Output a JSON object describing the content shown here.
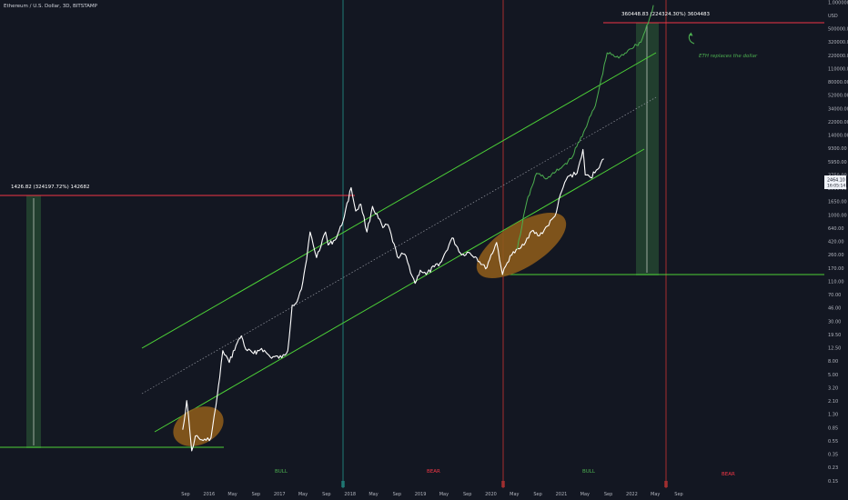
{
  "header": {
    "title": "Ethereum / U.S. Dollar, 3D, BITSTAMP",
    "axis_unit": "USD"
  },
  "colors": {
    "background": "#131722",
    "price": "#ffffff",
    "projection": "#4caf50",
    "channel": "#4cd137",
    "resistance": "#f23645",
    "ellipse": "#8b5a1b",
    "bull": "#4caf50",
    "bear": "#f23645",
    "vline_teal": "#26a69a",
    "vline_red": "#e53935",
    "range_fill": "#2e5e38"
  },
  "y_ticks": [
    "1.0000000000E+06",
    "USD",
    "500000.00",
    "320000.00",
    "220000.00",
    "110000.00",
    "80000.00",
    "52000.00",
    "34000.00",
    "22000.00",
    "14000.00",
    "9300.00",
    "5950.00",
    "3750.00",
    "2500.00",
    "1650.00",
    "1000.00",
    "640.00",
    "420.00",
    "260.00",
    "170.00",
    "110.00",
    "70.00",
    "46.00",
    "30.00",
    "19.50",
    "12.50",
    "8.00",
    "5.00",
    "3.20",
    "2.10",
    "1.30",
    "0.85",
    "0.55",
    "0.35",
    "0.23",
    "0.15"
  ],
  "x_ticks": [
    "Sep",
    "2016",
    "May",
    "Sep",
    "2017",
    "May",
    "Sep",
    "2018",
    "May",
    "Sep",
    "2019",
    "May",
    "Sep",
    "2020",
    "May",
    "Sep",
    "2021",
    "May",
    "Sep",
    "2022",
    "May",
    "Sep"
  ],
  "price_labels": {
    "current": "2464.10",
    "countdown": "16:05:14"
  },
  "annotations": {
    "left_range": "1426.82 (324197.72%) 142682",
    "right_range": "360448.83 (224324.30%) 3604483",
    "eth_note": "ETH replaces the dollar",
    "bull_1": "BULL",
    "bear_1": "BEAR",
    "bull_2": "BULL",
    "bear_2": "BEAR"
  },
  "chart_data": {
    "type": "line",
    "title": "Ethereum / U.S. Dollar, 3D, BITSTAMP",
    "xlabel": "",
    "ylabel": "USD",
    "y_scale": "log",
    "ylim": [
      0.15,
      1000000
    ],
    "xlim": [
      "2015-08-01",
      "2022-10-15"
    ],
    "grid": false,
    "series": [
      {
        "role": "price",
        "x": [
          "2015-08-15",
          "2015-09-05",
          "2015-10-01",
          "2015-10-20",
          "2015-11-15",
          "2015-12-15",
          "2016-01-10",
          "2016-02-05",
          "2016-02-25",
          "2016-03-12",
          "2016-04-15",
          "2016-05-20",
          "2016-06-17",
          "2016-07-10",
          "2016-08-20",
          "2016-10-01",
          "2016-11-15",
          "2017-01-15",
          "2017-02-15",
          "2017-03-10",
          "2017-04-05",
          "2017-05-05",
          "2017-05-25",
          "2017-06-12",
          "2017-07-16",
          "2017-08-15",
          "2017-09-01",
          "2017-09-15",
          "2017-10-20",
          "2017-11-25",
          "2017-12-15",
          "2018-01-13",
          "2018-02-06",
          "2018-03-05",
          "2018-04-06",
          "2018-05-05",
          "2018-06-28",
          "2018-07-25",
          "2018-09-12",
          "2018-10-20",
          "2018-12-14",
          "2019-01-10",
          "2019-02-10",
          "2019-03-25",
          "2019-05-01",
          "2019-06-26",
          "2019-08-15",
          "2019-09-20",
          "2019-11-01",
          "2019-12-18",
          "2020-02-14",
          "2020-03-16",
          "2020-04-25",
          "2020-06-20",
          "2020-08-15",
          "2020-09-25",
          "2020-11-05",
          "2020-12-15",
          "2021-01-20",
          "2021-02-20",
          "2021-04-10",
          "2021-05-11",
          "2021-05-23",
          "2021-06-20",
          "2021-07-20",
          "2021-08-28"
        ],
        "values": [
          1.2,
          2.8,
          0.65,
          1.0,
          0.9,
          0.88,
          0.95,
          2.4,
          5.5,
          12.0,
          8.5,
          14.0,
          18.5,
          12.5,
          11.0,
          12.8,
          10.0,
          9.8,
          12.0,
          45.0,
          50.0,
          88.0,
          170.0,
          380.0,
          180.0,
          300.0,
          380.0,
          260.0,
          300.0,
          460.0,
          720.0,
          1380.0,
          700.0,
          850.0,
          380.0,
          800.0,
          430.0,
          470.0,
          185.0,
          200.0,
          85.0,
          125.0,
          110.0,
          138.0,
          160.0,
          320.0,
          195.0,
          210.0,
          180.0,
          130.0,
          280.0,
          110.0,
          190.0,
          240.0,
          390.0,
          340.0,
          450.0,
          600.0,
          1250.0,
          1900.0,
          2100.0,
          4200.0,
          2000.0,
          1850.0,
          2300.0,
          3200.0
        ]
      },
      {
        "role": "projection",
        "x": [
          "2020-06-01",
          "2020-07-20",
          "2020-09-10",
          "2020-11-05",
          "2021-01-10",
          "2021-03-10",
          "2021-05-15",
          "2021-07-15",
          "2021-09-15",
          "2021-11-15",
          "2022-01-10",
          "2022-03-10",
          "2022-04-25",
          "2022-05-15"
        ],
        "values": [
          230.0,
          900.0,
          2100.0,
          1800.0,
          2400.0,
          3200.0,
          7000.0,
          15000.0,
          70000.0,
          60000.0,
          78000.0,
          95000.0,
          190000.0,
          280000.0
        ]
      }
    ]
  }
}
